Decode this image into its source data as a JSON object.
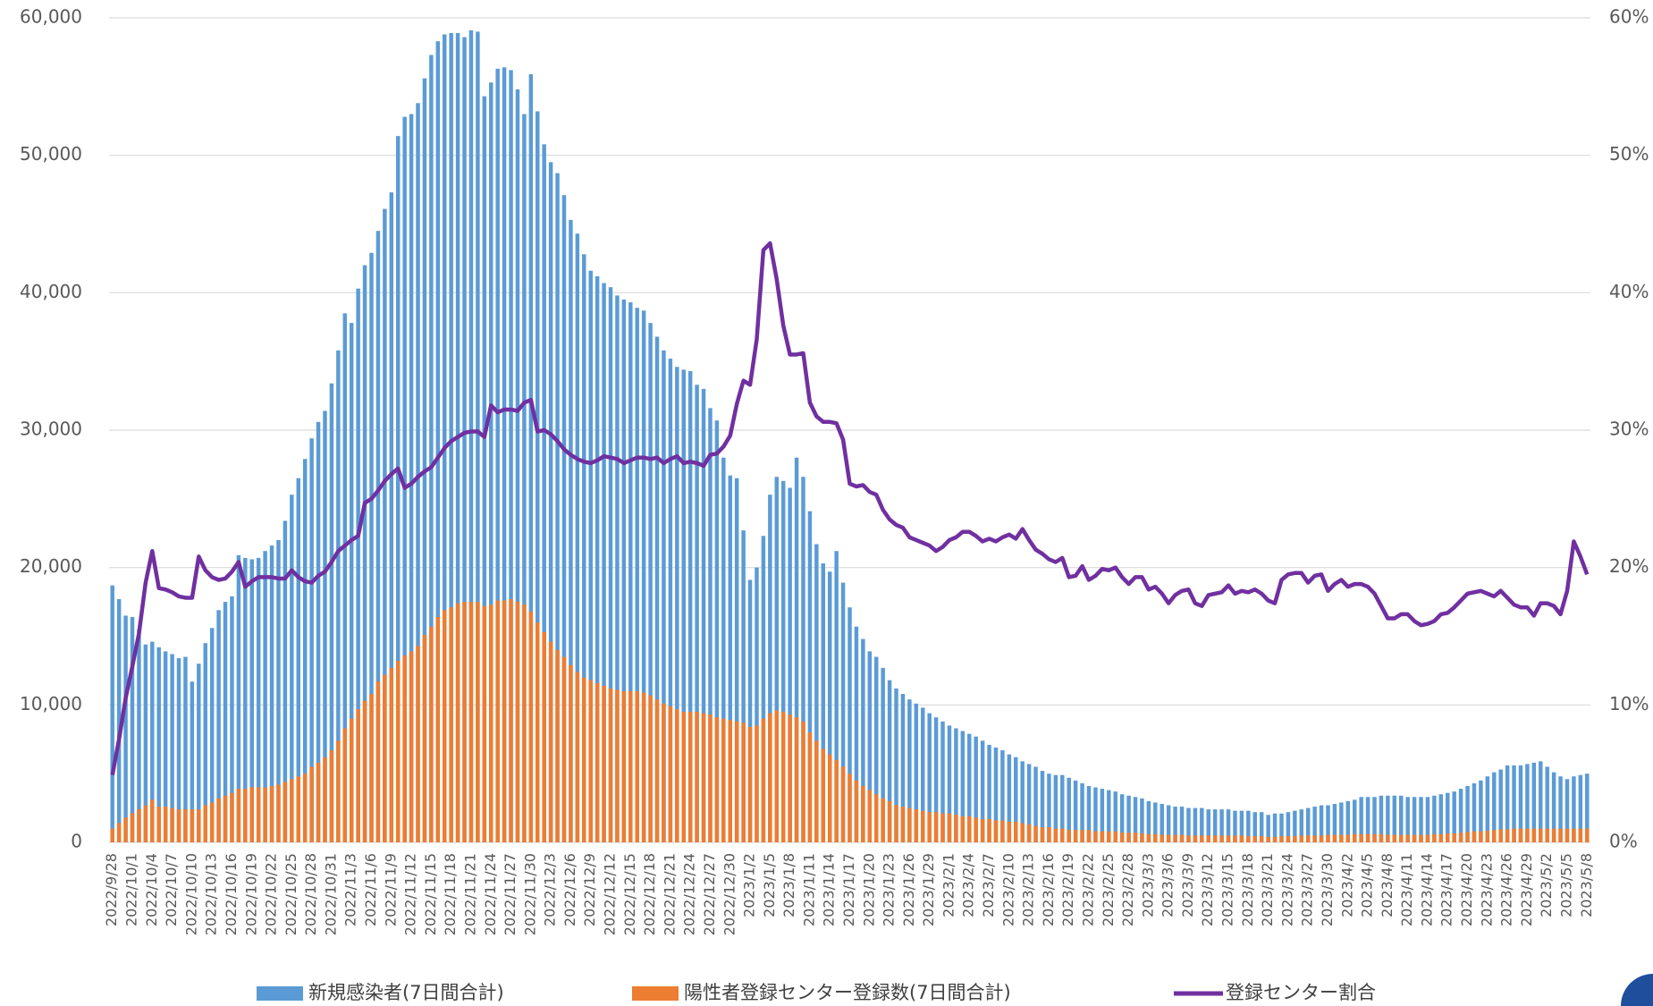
{
  "chart_data": {
    "type": "bar",
    "categories": [
      "2022/9/28",
      null,
      null,
      "2022/10/1",
      null,
      null,
      "2022/10/4",
      null,
      null,
      "2022/10/7",
      null,
      null,
      "2022/10/10",
      null,
      null,
      "2022/10/13",
      null,
      null,
      "2022/10/16",
      null,
      null,
      "2022/10/19",
      null,
      null,
      "2022/10/22",
      null,
      null,
      "2022/10/25",
      null,
      null,
      "2022/10/28",
      null,
      null,
      "2022/10/31",
      null,
      null,
      "2022/11/3",
      null,
      null,
      "2022/11/6",
      null,
      null,
      "2022/11/9",
      null,
      null,
      "2022/11/12",
      null,
      null,
      "2022/11/15",
      null,
      null,
      "2022/11/18",
      null,
      null,
      "2022/11/21",
      null,
      null,
      "2022/11/24",
      null,
      null,
      "2022/11/27",
      null,
      null,
      "2022/11/30",
      null,
      null,
      "2022/12/3",
      null,
      null,
      "2022/12/6",
      null,
      null,
      "2022/12/9",
      null,
      null,
      "2022/12/12",
      null,
      null,
      "2022/12/15",
      null,
      null,
      "2022/12/18",
      null,
      null,
      "2022/12/21",
      null,
      null,
      "2022/12/24",
      null,
      null,
      "2022/12/27",
      null,
      null,
      "2022/12/30",
      null,
      null,
      "2023/1/2",
      null,
      null,
      "2023/1/5",
      null,
      null,
      "2023/1/8",
      null,
      null,
      "2023/1/11",
      null,
      null,
      "2023/1/14",
      null,
      null,
      "2023/1/17",
      null,
      null,
      "2023/1/20",
      null,
      null,
      "2023/1/23",
      null,
      null,
      "2023/1/26",
      null,
      null,
      "2023/1/29",
      null,
      null,
      "2023/2/1",
      null,
      null,
      "2023/2/4",
      null,
      null,
      "2023/2/7",
      null,
      null,
      "2023/2/10",
      null,
      null,
      "2023/2/13",
      null,
      null,
      "2023/2/16",
      null,
      null,
      "2023/2/19",
      null,
      null,
      "2023/2/22",
      null,
      null,
      "2023/2/25",
      null,
      null,
      "2023/2/28",
      null,
      null,
      "2023/3/3",
      null,
      null,
      "2023/3/6",
      null,
      null,
      "2023/3/9",
      null,
      null,
      "2023/3/12",
      null,
      null,
      "2023/3/15",
      null,
      null,
      "2023/3/18",
      null,
      null,
      "2023/3/21",
      null,
      null,
      "2023/3/24",
      null,
      null,
      "2023/3/27",
      null,
      null,
      "2023/3/30",
      null,
      null,
      "2023/4/2",
      null,
      null,
      "2023/4/5",
      null,
      null,
      "2023/4/8",
      null,
      null,
      "2023/4/11",
      null,
      null,
      "2023/4/14",
      null,
      null,
      "2023/4/17",
      null,
      null,
      "2023/4/20",
      null,
      null,
      "2023/4/23",
      null,
      null,
      "2023/4/26",
      null,
      null,
      "2023/4/29",
      null,
      null,
      "2023/5/2",
      null,
      null,
      "2023/5/5",
      null,
      null,
      "2023/5/8"
    ],
    "series": [
      {
        "name": "新規感染者(7日間合計)",
        "color": "#5b9bd5",
        "type": "bar",
        "values": [
          18700,
          17700,
          16500,
          16400,
          15500,
          14400,
          14600,
          14200,
          13900,
          13700,
          13400,
          13500,
          11700,
          13000,
          14500,
          15600,
          16900,
          17500,
          17900,
          20900,
          20700,
          20600,
          20700,
          21200,
          21600,
          22000,
          23400,
          25300,
          26500,
          27900,
          29400,
          30600,
          31400,
          33400,
          35800,
          38500,
          37800,
          40300,
          42000,
          42900,
          44500,
          46100,
          47300,
          51400,
          52800,
          53000,
          53800,
          55600,
          57300,
          58300,
          58800,
          58900,
          58900,
          58600,
          59100,
          59000,
          54300,
          55300,
          56300,
          56400,
          56200,
          54800,
          53000,
          55900,
          53200,
          50800,
          49500,
          48700,
          47100,
          45300,
          44300,
          42800,
          41600,
          41200,
          40700,
          40400,
          39800,
          39500,
          39300,
          38900,
          38700,
          37800,
          36800,
          35800,
          35200,
          34600,
          34400,
          34300,
          33300,
          33000,
          31600,
          30700,
          28000,
          26700,
          26500,
          22700,
          19100,
          20000,
          22300,
          25300,
          26600,
          26300,
          25800,
          28000,
          26600,
          24100,
          21700,
          20300,
          19700,
          21200,
          18900,
          17100,
          15700,
          14800,
          13900,
          13500,
          12700,
          11800,
          11200,
          10800,
          10400,
          10100,
          9800,
          9400,
          9100,
          8800,
          8500,
          8300,
          8100,
          7900,
          7700,
          7400,
          7100,
          6900,
          6700,
          6400,
          6200,
          5900,
          5700,
          5500,
          5200,
          5000,
          4900,
          4900,
          4700,
          4500,
          4300,
          4100,
          4000,
          3900,
          3800,
          3700,
          3500,
          3400,
          3300,
          3200,
          3000,
          2900,
          2800,
          2700,
          2600,
          2600,
          2500,
          2500,
          2500,
          2400,
          2400,
          2400,
          2400,
          2300,
          2300,
          2300,
          2200,
          2200,
          2000,
          2100,
          2100,
          2200,
          2300,
          2400,
          2500,
          2600,
          2700,
          2700,
          2800,
          2900,
          3000,
          3100,
          3300,
          3300,
          3300,
          3400,
          3400,
          3400,
          3400,
          3300,
          3300,
          3300,
          3300,
          3400,
          3500,
          3600,
          3700,
          3900,
          4100,
          4300,
          4500,
          4800,
          5100,
          5300,
          5600,
          5600,
          5600,
          5700,
          5800,
          5900,
          5500,
          5100,
          4800,
          4600,
          4800,
          4900,
          5000
        ]
      },
      {
        "name": "陽性者登録センター登録数(7日間合計)",
        "color": "#ed7d31",
        "type": "bar",
        "values": [
          1000,
          1400,
          1800,
          2100,
          2400,
          2700,
          3100,
          2600,
          2600,
          2500,
          2400,
          2400,
          2400,
          2400,
          2700,
          2900,
          3200,
          3400,
          3600,
          3900,
          3900,
          4000,
          4000,
          4000,
          4100,
          4200,
          4400,
          4600,
          4800,
          5000,
          5500,
          5800,
          6200,
          6700,
          7400,
          8300,
          9000,
          9700,
          10300,
          10800,
          11700,
          12200,
          12700,
          13200,
          13600,
          13900,
          14300,
          15100,
          15700,
          16400,
          16900,
          17100,
          17400,
          17500,
          17500,
          17500,
          17200,
          17300,
          17600,
          17600,
          17700,
          17500,
          17300,
          16800,
          16000,
          15300,
          14600,
          14000,
          13500,
          12900,
          12400,
          12000,
          11800,
          11600,
          11400,
          11200,
          11100,
          11000,
          11000,
          11000,
          10900,
          10700,
          10400,
          10100,
          9900,
          9700,
          9500,
          9500,
          9500,
          9400,
          9300,
          9100,
          9000,
          8900,
          8800,
          8700,
          8400,
          8500,
          9000,
          9400,
          9600,
          9500,
          9300,
          9100,
          8800,
          8000,
          7400,
          6800,
          6400,
          6000,
          5500,
          5000,
          4500,
          4100,
          3800,
          3500,
          3200,
          3000,
          2700,
          2600,
          2500,
          2400,
          2300,
          2200,
          2200,
          2100,
          2100,
          2000,
          1900,
          1900,
          1800,
          1700,
          1700,
          1600,
          1600,
          1500,
          1500,
          1400,
          1300,
          1200,
          1100,
          1100,
          1000,
          1000,
          900,
          900,
          900,
          900,
          800,
          800,
          800,
          800,
          700,
          700,
          700,
          650,
          600,
          600,
          550,
          550,
          550,
          550,
          500,
          500,
          500,
          500,
          500,
          500,
          500,
          500,
          500,
          450,
          450,
          450,
          400,
          400,
          450,
          450,
          450,
          500,
          500,
          500,
          500,
          550,
          550,
          550,
          550,
          600,
          600,
          600,
          600,
          600,
          550,
          550,
          550,
          550,
          550,
          550,
          550,
          600,
          600,
          650,
          650,
          700,
          750,
          800,
          800,
          850,
          900,
          950,
          950,
          1000,
          1000,
          1000,
          1000,
          1000,
          1000,
          1000,
          1000,
          1000,
          1000,
          1000,
          1000
        ]
      },
      {
        "name": "登録センター割合",
        "color": "#7030a0",
        "type": "line",
        "axis": "y2",
        "values": [
          4.9,
          7.5,
          10.5,
          12.8,
          15.2,
          18.9,
          21.2,
          18.5,
          18.4,
          18.2,
          17.9,
          17.8,
          17.8,
          20.8,
          19.8,
          19.3,
          19.1,
          19.2,
          19.7,
          20.4,
          18.6,
          19.0,
          19.3,
          19.3,
          19.3,
          19.2,
          19.2,
          19.8,
          19.3,
          19.0,
          18.9,
          19.4,
          19.7,
          20.4,
          21.2,
          21.6,
          22.0,
          22.3,
          24.7,
          25.0,
          25.6,
          26.3,
          26.8,
          27.2,
          25.8,
          26.1,
          26.6,
          27.0,
          27.3,
          28.0,
          28.7,
          29.2,
          29.5,
          29.8,
          29.9,
          29.9,
          29.5,
          31.8,
          31.3,
          31.5,
          31.5,
          31.4,
          32.0,
          32.2,
          29.9,
          30.0,
          29.7,
          29.2,
          28.6,
          28.2,
          27.9,
          27.7,
          27.6,
          27.8,
          28.1,
          28.0,
          27.9,
          27.6,
          27.8,
          28.0,
          28.0,
          27.9,
          28.0,
          27.6,
          27.9,
          28.1,
          27.6,
          27.7,
          27.6,
          27.4,
          28.2,
          28.3,
          28.8,
          29.6,
          31.9,
          33.6,
          33.3,
          36.6,
          43.1,
          43.6,
          41.0,
          37.6,
          35.5,
          35.5,
          35.6,
          32.0,
          31.0,
          30.6,
          30.6,
          30.5,
          29.3,
          26.1,
          25.9,
          26.0,
          25.5,
          25.3,
          24.2,
          23.5,
          23.1,
          22.9,
          22.2,
          22.0,
          21.8,
          21.6,
          21.2,
          21.5,
          22.0,
          22.2,
          22.6,
          22.6,
          22.3,
          21.9,
          22.1,
          21.9,
          22.2,
          22.4,
          22.1,
          22.8,
          22.0,
          21.3,
          21.0,
          20.6,
          20.4,
          20.7,
          19.3,
          19.4,
          20.1,
          19.1,
          19.4,
          19.9,
          19.8,
          20.0,
          19.3,
          18.8,
          19.3,
          19.3,
          18.4,
          18.6,
          18.1,
          17.4,
          18.0,
          18.3,
          18.4,
          17.4,
          17.2,
          18.0,
          18.1,
          18.2,
          18.7,
          18.1,
          18.3,
          18.2,
          18.4,
          18.1,
          17.6,
          17.4,
          19.1,
          19.5,
          19.6,
          19.6,
          18.9,
          19.4,
          19.5,
          18.3,
          18.8,
          19.1,
          18.6,
          18.8,
          18.8,
          18.6,
          18.1,
          17.2,
          16.3,
          16.3,
          16.6,
          16.6,
          16.1,
          15.8,
          15.9,
          16.1,
          16.6,
          16.7,
          17.1,
          17.6,
          18.1,
          18.2,
          18.3,
          18.1,
          17.9,
          18.3,
          17.8,
          17.3,
          17.1,
          17.1,
          16.5,
          17.4,
          17.4,
          17.2,
          16.6,
          18.3,
          21.9,
          20.8,
          19.5
        ]
      }
    ],
    "ylim": [
      0,
      60000
    ],
    "yticks": [
      0,
      {
        "value": 10000,
        "label": "10,000"
      },
      {
        "value": 20000,
        "label": "20,000"
      },
      {
        "value": 30000,
        "label": "30,000"
      },
      {
        "value": 40000,
        "label": "40,000"
      },
      {
        "value": 50000,
        "label": "50,000"
      },
      {
        "value": 60000,
        "label": "60,000"
      }
    ],
    "y2lim": [
      0,
      60
    ],
    "y2ticks": [
      {
        "value": 0,
        "label": "0%"
      },
      {
        "value": 10,
        "label": "10%"
      },
      {
        "value": 20,
        "label": "20%"
      },
      {
        "value": 30,
        "label": "30%"
      },
      {
        "value": 40,
        "label": "40%"
      },
      {
        "value": 50,
        "label": "50%"
      },
      {
        "value": 60,
        "label": "60%"
      }
    ],
    "grid": true,
    "legend": "bottom"
  }
}
